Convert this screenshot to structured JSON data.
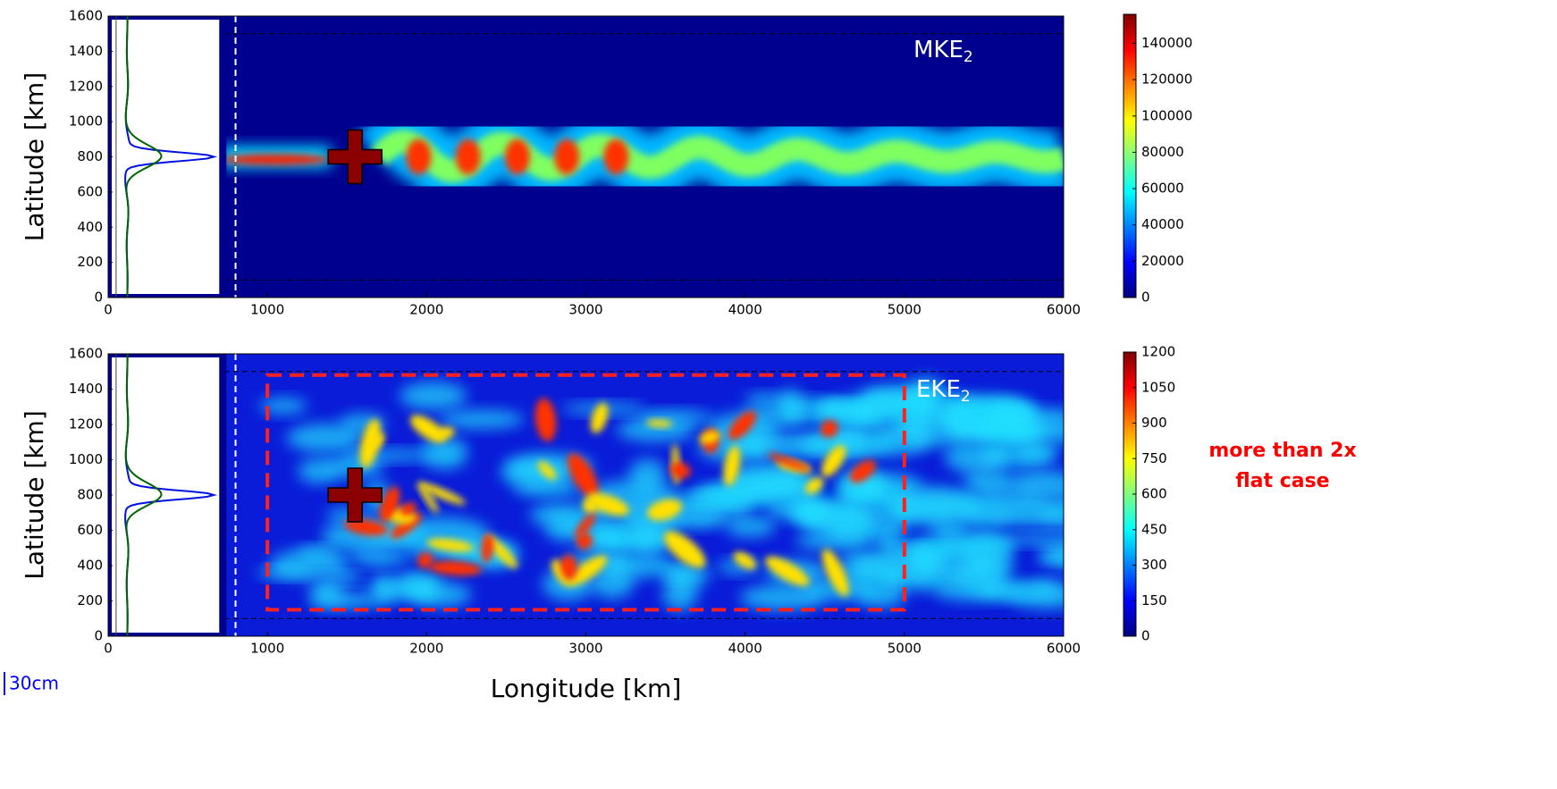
{
  "chart_data": [
    {
      "type": "heatmap",
      "label": "MKE",
      "label_subscript": "2",
      "ylabel": "Latitude [km]",
      "xlim": [
        0,
        6000
      ],
      "xticks": [
        0,
        1000,
        2000,
        3000,
        4000,
        5000,
        6000
      ],
      "ylim": [
        0,
        1600
      ],
      "yticks": [
        0,
        200,
        400,
        600,
        800,
        1000,
        1200,
        1400,
        1600
      ],
      "colormap": "jet",
      "colorbar_lim": [
        0,
        156000
      ],
      "colorbar_ticks": [
        0,
        20000,
        40000,
        60000,
        80000,
        100000,
        120000,
        140000
      ]
    },
    {
      "type": "heatmap",
      "label": "EKE",
      "label_subscript": "2",
      "ylabel": "Latitude [km]",
      "xlabel": "Longitude [km]",
      "xlim": [
        0,
        6000
      ],
      "xticks": [
        0,
        1000,
        2000,
        3000,
        4000,
        5000,
        6000
      ],
      "ylim": [
        0,
        1600
      ],
      "yticks": [
        0,
        200,
        400,
        600,
        800,
        1000,
        1200,
        1400,
        1600
      ],
      "colormap": "jet",
      "colorbar_lim": [
        0,
        1200
      ],
      "colorbar_ticks": [
        0,
        150,
        300,
        450,
        600,
        750,
        900,
        1050,
        1200
      ],
      "annotation": [
        "more than 2x",
        "flat case"
      ],
      "annotation_color": "#ff0000",
      "note": "30cm"
    }
  ]
}
